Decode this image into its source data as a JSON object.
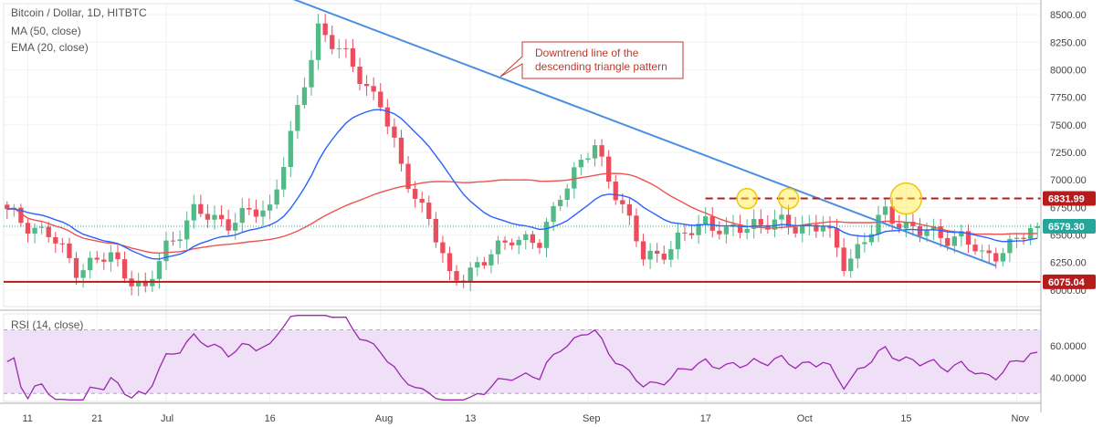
{
  "legend": {
    "title": "Bitcoin / Dollar, 1D, HITBTC",
    "ma": "MA (50, close)",
    "ema": "EMA (20, close)",
    "rsi": "RSI (14, close)"
  },
  "annotation": {
    "line1": "Downtrend line of the",
    "line2": "descending triangle pattern"
  },
  "colors": {
    "bull": "#53b987",
    "bear": "#eb4d5c",
    "ma": "#ef5350",
    "ema": "#2962ff",
    "trend": "#4a90e2",
    "resistance": "#b71c1c",
    "support": "#b71c1c",
    "current": "#26a69a",
    "rsi": "#9c27b0",
    "rsi_band": "#efe0f7"
  },
  "chart_data": [
    {
      "type": "candlestick",
      "title": "Bitcoin / Dollar, 1D, HITBTC",
      "ylim": [
        5850,
        8600
      ],
      "y_ticks": [
        "8500.00",
        "8250.00",
        "8000.00",
        "7750.00",
        "7500.00",
        "7250.00",
        "7000.00",
        "6750.00",
        "6500.00",
        "6250.00",
        "6000.00"
      ],
      "x_ticks": [
        "11",
        "21",
        "Jul",
        "16",
        "Aug",
        "13",
        "Sep",
        "17",
        "Oct",
        "15",
        "Nov"
      ],
      "x_tick_index": [
        3,
        13,
        23,
        38,
        54,
        67,
        84,
        101,
        115,
        130,
        146
      ],
      "bars": 150,
      "keypoints": [
        [
          0,
          6700
        ],
        [
          6,
          6500
        ],
        [
          10,
          6200
        ],
        [
          15,
          6300
        ],
        [
          20,
          5980
        ],
        [
          23,
          6400
        ],
        [
          27,
          6700
        ],
        [
          32,
          6620
        ],
        [
          38,
          6750
        ],
        [
          42,
          7600
        ],
        [
          45,
          8400
        ],
        [
          49,
          8100
        ],
        [
          54,
          7700
        ],
        [
          57,
          7100
        ],
        [
          61,
          6650
        ],
        [
          64,
          6100
        ],
        [
          69,
          6250
        ],
        [
          73,
          6500
        ],
        [
          77,
          6400
        ],
        [
          80,
          6900
        ],
        [
          85,
          7300
        ],
        [
          88,
          6900
        ],
        [
          92,
          6300
        ],
        [
          96,
          6380
        ],
        [
          101,
          6650
        ],
        [
          104,
          6500
        ],
        [
          108,
          6620
        ],
        [
          114,
          6580
        ],
        [
          118,
          6580
        ],
        [
          121,
          6250
        ],
        [
          124,
          6450
        ],
        [
          127,
          6700
        ],
        [
          132,
          6520
        ],
        [
          138,
          6480
        ],
        [
          141,
          6300
        ],
        [
          145,
          6400
        ],
        [
          149,
          6580
        ]
      ],
      "series": [
        {
          "name": "MA (50, close)",
          "type": "line"
        },
        {
          "name": "EMA (20, close)",
          "type": "line"
        }
      ],
      "levels": [
        {
          "label": "6831.99",
          "value": 6831.99,
          "style": "dashed"
        },
        {
          "label": "6579.30",
          "value": 6579.3,
          "style": "current"
        },
        {
          "label": "6075.04",
          "value": 6075.04,
          "style": "solid"
        }
      ],
      "trendline": {
        "from": [
          41,
          8650
        ],
        "to": [
          143,
          6220
        ]
      },
      "highlights": [
        {
          "index": 107,
          "value": 6830
        },
        {
          "index": 113,
          "value": 6830
        },
        {
          "index": 130,
          "value": 6830
        }
      ]
    },
    {
      "type": "line",
      "title": "RSI (14, close)",
      "ylim": [
        25,
        80
      ],
      "y_ticks": [
        "60.0000",
        "40.0000"
      ],
      "band": [
        30,
        70
      ],
      "series": [
        {
          "name": "RSI (14, close)"
        }
      ]
    }
  ]
}
